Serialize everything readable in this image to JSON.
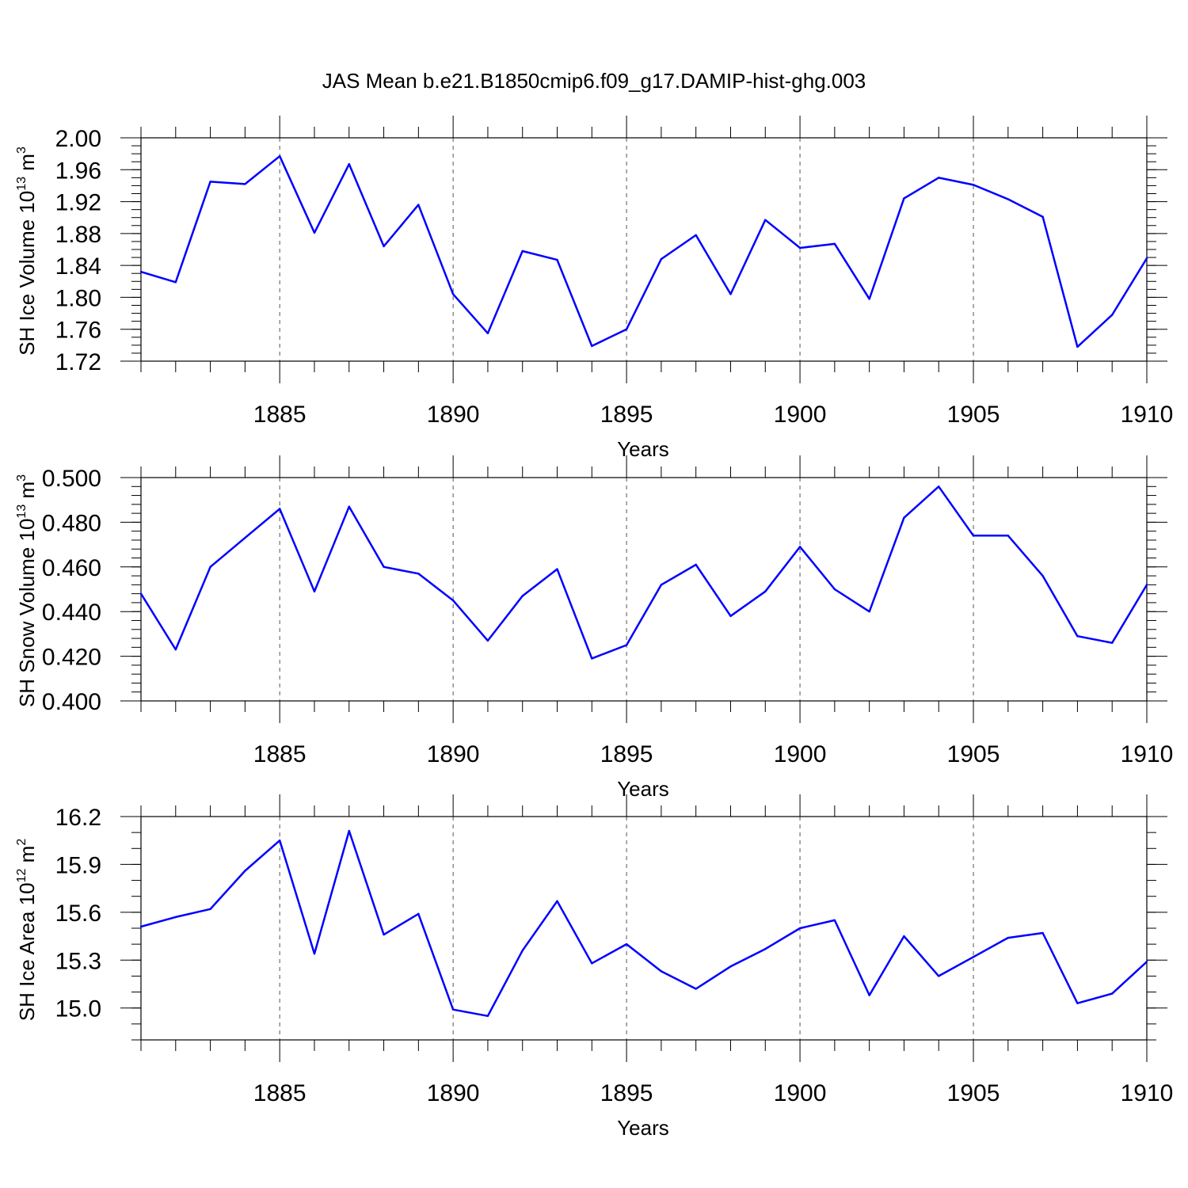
{
  "title": "JAS Mean b.e21.B1850cmip6.f09_g17.DAMIP-hist-ghg.003",
  "colors": {
    "line": "#0000ff",
    "frame": "#000000",
    "grid": "#555555"
  },
  "chart_data": [
    {
      "type": "line",
      "ylabel_main": "SH Ice Volume 10",
      "ylabel_exp1": "13",
      "ylabel_unit": " m",
      "ylabel_exp2": "3",
      "xlabel": "Years",
      "xlim": [
        1881,
        1910
      ],
      "ylim": [
        1.72,
        2.0
      ],
      "yticks": [
        1.72,
        1.76,
        1.8,
        1.84,
        1.88,
        1.92,
        1.96,
        2.0
      ],
      "ytick_labels": [
        "1.72",
        "1.76",
        "1.80",
        "1.84",
        "1.88",
        "1.92",
        "1.96",
        "2.00"
      ],
      "yminor_step": 0.01,
      "xticks": [
        1885,
        1890,
        1895,
        1900,
        1905,
        1910
      ],
      "xtick_labels": [
        "1885",
        "1890",
        "1895",
        "1900",
        "1905",
        "1910"
      ],
      "x": [
        1881,
        1882,
        1883,
        1884,
        1885,
        1886,
        1887,
        1888,
        1889,
        1890,
        1891,
        1892,
        1893,
        1894,
        1895,
        1896,
        1897,
        1898,
        1899,
        1900,
        1901,
        1902,
        1903,
        1904,
        1905,
        1906,
        1907,
        1908,
        1909,
        1910
      ],
      "values": [
        1.832,
        1.819,
        1.945,
        1.942,
        1.977,
        1.881,
        1.967,
        1.864,
        1.916,
        1.804,
        1.755,
        1.858,
        1.847,
        1.739,
        1.76,
        1.848,
        1.878,
        1.804,
        1.897,
        1.862,
        1.867,
        1.798,
        1.924,
        1.95,
        1.941,
        1.923,
        1.901,
        1.738,
        1.778,
        1.849
      ]
    },
    {
      "type": "line",
      "ylabel_main": "SH Snow Volume 10",
      "ylabel_exp1": "13",
      "ylabel_unit": " m",
      "ylabel_exp2": "3",
      "xlabel": "Years",
      "xlim": [
        1881,
        1910
      ],
      "ylim": [
        0.4,
        0.5
      ],
      "yticks": [
        0.4,
        0.42,
        0.44,
        0.46,
        0.48,
        0.5
      ],
      "ytick_labels": [
        "0.400",
        "0.420",
        "0.440",
        "0.460",
        "0.480",
        "0.500"
      ],
      "yminor_step": 0.004,
      "xticks": [
        1885,
        1890,
        1895,
        1900,
        1905,
        1910
      ],
      "xtick_labels": [
        "1885",
        "1890",
        "1895",
        "1900",
        "1905",
        "1910"
      ],
      "x": [
        1881,
        1882,
        1883,
        1884,
        1885,
        1886,
        1887,
        1888,
        1889,
        1890,
        1891,
        1892,
        1893,
        1894,
        1895,
        1896,
        1897,
        1898,
        1899,
        1900,
        1901,
        1902,
        1903,
        1904,
        1905,
        1906,
        1907,
        1908,
        1909,
        1910
      ],
      "values": [
        0.448,
        0.423,
        0.46,
        0.473,
        0.486,
        0.449,
        0.487,
        0.46,
        0.457,
        0.445,
        0.427,
        0.447,
        0.459,
        0.419,
        0.425,
        0.452,
        0.461,
        0.438,
        0.449,
        0.469,
        0.45,
        0.44,
        0.482,
        0.496,
        0.474,
        0.474,
        0.456,
        0.429,
        0.426,
        0.452
      ]
    },
    {
      "type": "line",
      "ylabel_main": "SH Ice Area 10",
      "ylabel_exp1": "12",
      "ylabel_unit": " m",
      "ylabel_exp2": "2",
      "xlabel": "Years",
      "xlim": [
        1881,
        1910
      ],
      "ylim": [
        14.8,
        16.2
      ],
      "yticks": [
        15.0,
        15.3,
        15.6,
        15.9,
        16.2
      ],
      "ytick_labels": [
        "15.0",
        "15.3",
        "15.6",
        "15.9",
        "16.2"
      ],
      "yminor_step": 0.1,
      "xticks": [
        1885,
        1890,
        1895,
        1900,
        1905,
        1910
      ],
      "xtick_labels": [
        "1885",
        "1890",
        "1895",
        "1900",
        "1905",
        "1910"
      ],
      "x": [
        1881,
        1882,
        1883,
        1884,
        1885,
        1886,
        1887,
        1888,
        1889,
        1890,
        1891,
        1892,
        1893,
        1894,
        1895,
        1896,
        1897,
        1898,
        1899,
        1900,
        1901,
        1902,
        1903,
        1904,
        1905,
        1906,
        1907,
        1908,
        1909,
        1910
      ],
      "values": [
        15.51,
        15.57,
        15.62,
        15.86,
        16.05,
        15.34,
        16.11,
        15.46,
        15.59,
        14.99,
        14.95,
        15.36,
        15.67,
        15.28,
        15.4,
        15.23,
        15.12,
        15.26,
        15.37,
        15.5,
        15.55,
        15.08,
        15.45,
        15.2,
        15.32,
        15.44,
        15.47,
        15.03,
        15.09,
        15.29
      ]
    }
  ]
}
